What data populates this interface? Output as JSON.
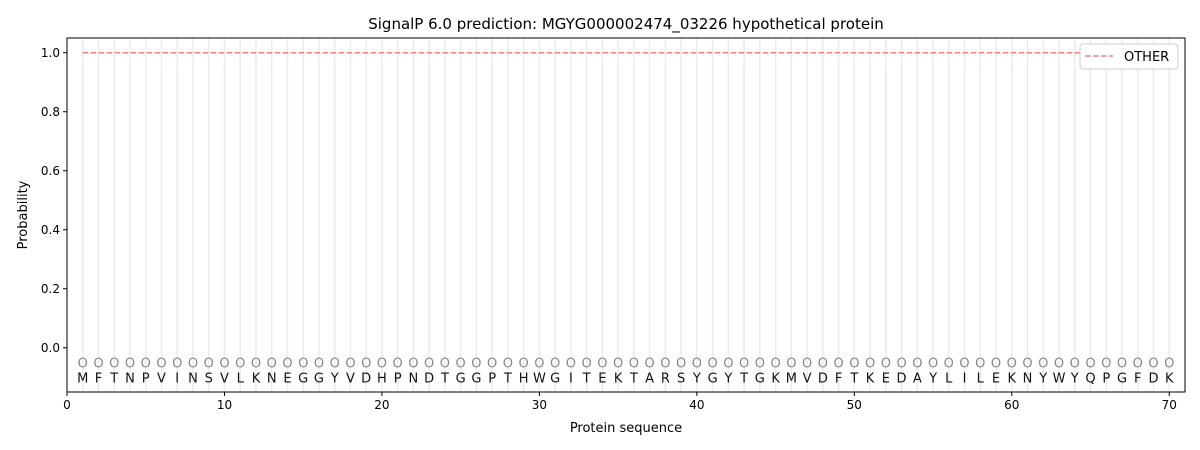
{
  "chart_data": {
    "type": "line",
    "title": "SignalP 6.0 prediction: MGYG000002474_03226 hypothetical protein",
    "xlabel": "Protein sequence",
    "ylabel": "Probability",
    "xlim": [
      0,
      71
    ],
    "ylim": [
      -0.15,
      1.05
    ],
    "xticks": [
      0,
      10,
      20,
      30,
      40,
      50,
      60,
      70
    ],
    "yticks": [
      "0.0",
      "0.2",
      "0.4",
      "0.6",
      "0.8",
      "1.0"
    ],
    "grid": "vertical per residue",
    "legend_placement": "top-right",
    "sequence": [
      "M",
      "F",
      "T",
      "N",
      "P",
      "V",
      "I",
      "N",
      "S",
      "V",
      "L",
      "K",
      "N",
      "E",
      "G",
      "G",
      "Y",
      "V",
      "D",
      "H",
      "P",
      "N",
      "D",
      "T",
      "G",
      "G",
      "P",
      "T",
      "H",
      "W",
      "G",
      "I",
      "T",
      "E",
      "K",
      "T",
      "A",
      "R",
      "S",
      "Y",
      "G",
      "Y",
      "T",
      "G",
      "K",
      "M",
      "V",
      "D",
      "F",
      "T",
      "K",
      "E",
      "D",
      "A",
      "Y",
      "L",
      "I",
      "L",
      "E",
      "K",
      "N",
      "Y",
      "W",
      "Y",
      "Q",
      "P",
      "G",
      "F",
      "D",
      "K"
    ],
    "labels_marker": "O",
    "series": [
      {
        "name": "OTHER",
        "color": "#f08080",
        "style": "dashed",
        "x_start": 1,
        "x_end": 70,
        "value": 1.0
      }
    ]
  }
}
